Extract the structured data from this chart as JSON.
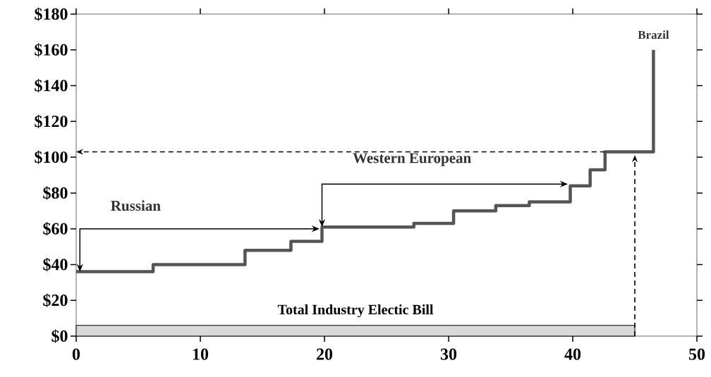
{
  "chart_data": {
    "type": "step",
    "series": [
      {
        "color": "#555555",
        "x": [
          0,
          6.2,
          13.6,
          17.3,
          19.8,
          27.2,
          30.4,
          33.8,
          36.5,
          39.8,
          41.4,
          42.6,
          46.5
        ],
        "values": [
          36,
          40,
          48,
          53,
          61,
          63,
          70,
          73,
          75,
          84,
          93,
          103,
          160
        ]
      },
      {
        "type": "area",
        "name": "Total Industry Electic Bill",
        "color": "#d9d9d9",
        "x": [
          0,
          45
        ],
        "values": [
          6,
          6
        ]
      }
    ],
    "xlim": [
      0,
      50
    ],
    "xticks": [
      0,
      10,
      20,
      30,
      40,
      50
    ],
    "ylim": [
      0,
      180
    ],
    "yticks": [
      {
        "value": 0,
        "label": "$0"
      },
      {
        "value": 20,
        "label": "$20"
      },
      {
        "value": 40,
        "label": "$40"
      },
      {
        "value": 60,
        "label": "$60"
      },
      {
        "value": 80,
        "label": "$80"
      },
      {
        "value": 100,
        "label": "$100"
      },
      {
        "value": 120,
        "label": "$120"
      },
      {
        "value": 140,
        "label": "$140"
      },
      {
        "value": 160,
        "label": "$160"
      },
      {
        "value": 180,
        "label": "$180"
      }
    ],
    "annotations": [
      "Russian",
      "Western European",
      {
        "text": "Brazil",
        "x": 46.5,
        "y": 160
      }
    ],
    "ref_lines": [
      {
        "axis": "y",
        "value": 103,
        "line_style": "dashed"
      },
      {
        "axis": "x",
        "value": 45,
        "line_style": "dashed"
      }
    ],
    "grid": false,
    "marker": "none",
    "line_style": "solid"
  }
}
